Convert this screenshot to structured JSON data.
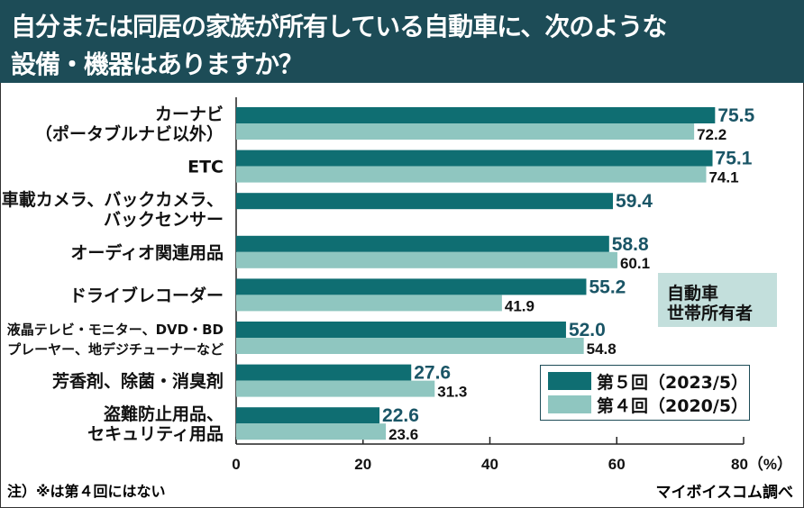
{
  "header": {
    "title_line1": "自分または同居の家族が所有している自動車に、次のような",
    "title_line2": "設備・機器はありますか？"
  },
  "badge": {
    "line1": "自動車",
    "line2": "世帯所有者"
  },
  "note": "注）※は第４回にはない",
  "source": "マイボイスコム調べ",
  "colors": {
    "current": "#0f6e72",
    "previous": "#8fc6c0",
    "current_label": "#1a5566",
    "header": "#1d4c57"
  },
  "chart_data": {
    "type": "bar",
    "orientation": "horizontal",
    "title": "自分または同居の家族が所有している自動車に、次のような設備・機器はありますか？",
    "xlabel": "(%)",
    "xlim": [
      0,
      80
    ],
    "xticks": [
      "0",
      "20",
      "40",
      "60",
      "80（%）"
    ],
    "xtick_values": [
      0,
      20,
      40,
      60,
      80
    ],
    "categories": [
      [
        "カーナビ",
        "（ポータブルナビ以外）"
      ],
      [
        "ETC"
      ],
      [
        "※車載カメラ、バックカメラ、",
        "バックセンサー"
      ],
      [
        "オーディオ関連用品"
      ],
      [
        "ドライブレコーダー"
      ],
      [
        "液晶テレビ・モニター、DVD・BD",
        "プレーヤー、地デジチューナーなど"
      ],
      [
        "芳香剤、除菌・消臭剤"
      ],
      [
        "盗難防止用品、",
        "セキュリティ用品"
      ]
    ],
    "series": [
      {
        "name": "第５回（2023/5）",
        "values": [
          75.5,
          75.1,
          59.4,
          58.8,
          55.2,
          52.0,
          27.6,
          22.6
        ]
      },
      {
        "name": "第４回（2020/5）",
        "values": [
          72.2,
          74.1,
          null,
          60.1,
          41.9,
          54.8,
          31.3,
          23.6
        ]
      }
    ],
    "legend_position": "bottom-right"
  }
}
